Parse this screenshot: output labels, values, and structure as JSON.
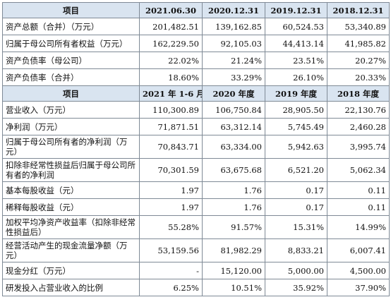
{
  "balance": {
    "headers": [
      "项目",
      "2021.06.30",
      "2020.12.31",
      "2019.12.31",
      "2018.12.31"
    ],
    "rows": [
      {
        "label": "资产总额（合并）（万元）",
        "values": [
          "201,482.51",
          "139,162.85",
          "60,524.53",
          "53,340.89"
        ]
      },
      {
        "label": "归属于母公司所有者权益（万元）",
        "values": [
          "162,229.50",
          "92,105.03",
          "44,413.14",
          "41,985.82"
        ]
      },
      {
        "label": "资产负债率（母公司）",
        "values": [
          "22.02%",
          "21.24%",
          "23.51%",
          "20.27%"
        ]
      },
      {
        "label": "资产负债率（合并）",
        "values": [
          "18.60%",
          "33.29%",
          "26.10%",
          "20.33%"
        ]
      }
    ]
  },
  "income": {
    "headers": [
      "项目",
      "2021 年 1-6 月",
      "2020 年度",
      "2019 年度",
      "2018 年度"
    ],
    "rows": [
      {
        "label": "营业收入（万元）",
        "values": [
          "110,300.89",
          "106,750.84",
          "28,905.50",
          "22,130.76"
        ]
      },
      {
        "label": "净利润（万元）",
        "values": [
          "71,871.51",
          "63,312.14",
          "5,745.49",
          "2,460.28"
        ]
      },
      {
        "label": "归属于母公司所有者的净利润（万元）",
        "values": [
          "70,843.71",
          "63,334.00",
          "5,942.63",
          "3,995.74"
        ]
      },
      {
        "label": "扣除非经常性损益后归属于母公司所有者的净利润",
        "values": [
          "70,301.59",
          "63,675.68",
          "6,521.20",
          "5,062.34"
        ]
      },
      {
        "label": "基本每股收益（元）",
        "values": [
          "1.97",
          "1.76",
          "0.17",
          "0.11"
        ]
      },
      {
        "label": "稀释每股收益（元）",
        "values": [
          "1.97",
          "1.76",
          "0.17",
          "0.11"
        ]
      },
      {
        "label": "加权平均净资产收益率（扣除非经常性损益后）",
        "values": [
          "55.28%",
          "91.57%",
          "15.31%",
          "14.99%"
        ]
      },
      {
        "label": "经营活动产生的现金流量净额（万元）",
        "values": [
          "53,159.56",
          "81,982.29",
          "8,833.21",
          "6,007.41"
        ]
      },
      {
        "label": "现金分红（万元）",
        "values": [
          "-",
          "15,120.00",
          "5,000.00",
          "4,500.00"
        ]
      },
      {
        "label": "研发投入占营业收入的比例",
        "values": [
          "6.25%",
          "10.51%",
          "35.92%",
          "37.90%"
        ]
      }
    ]
  }
}
